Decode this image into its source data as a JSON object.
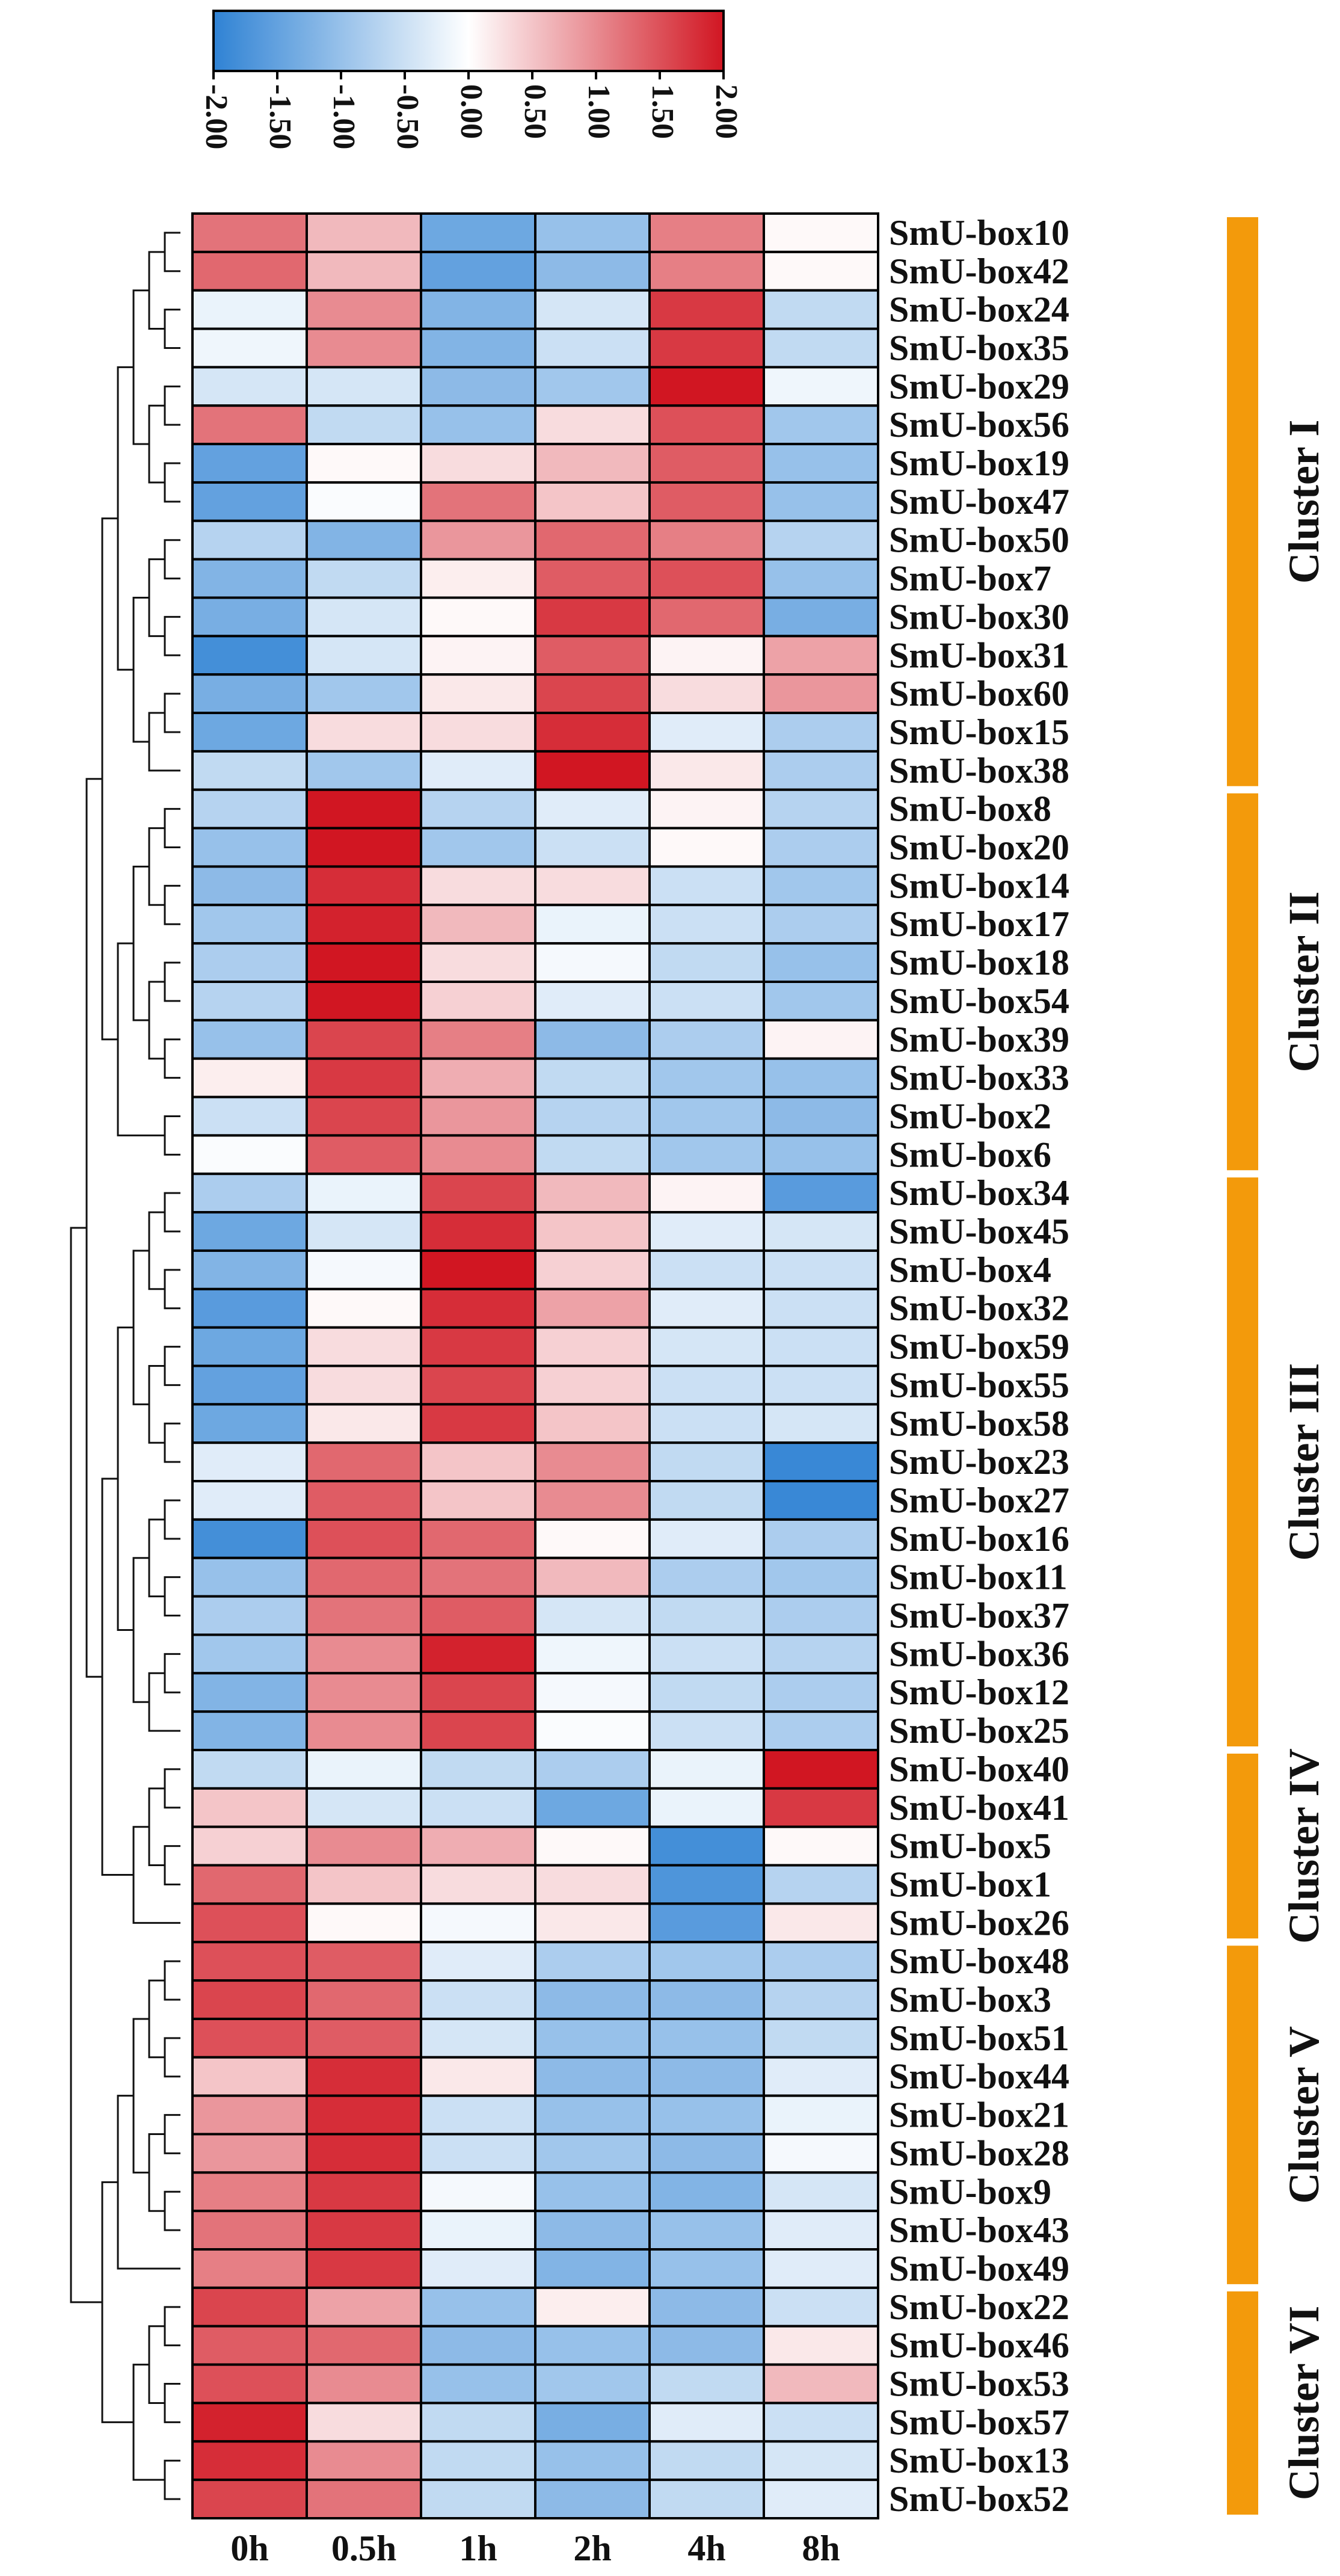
{
  "chart_data": {
    "type": "heatmap",
    "title": "",
    "colorbar": {
      "min": -2.0,
      "max": 2.0,
      "tick_labels": [
        "-2.00",
        "-1.50",
        "-1.00",
        "-0.50",
        "0.00",
        "0.50",
        "1.00",
        "1.50",
        "2.00"
      ],
      "tick_values": [
        -2.0,
        -1.5,
        -1.0,
        -0.5,
        0.0,
        0.5,
        1.0,
        1.5,
        2.0
      ],
      "low_color": "#2f82d4",
      "mid_color": "#ffffff",
      "high_color": "#d11622"
    },
    "columns": [
      "0h",
      "0.5h",
      "1h",
      "2h",
      "4h",
      "8h"
    ],
    "rows": [
      {
        "name": "SmU-box10",
        "values": [
          1.2,
          0.6,
          -1.4,
          -1.0,
          1.1,
          0.05
        ]
      },
      {
        "name": "SmU-box42",
        "values": [
          1.3,
          0.6,
          -1.5,
          -1.1,
          1.1,
          0.05
        ]
      },
      {
        "name": "SmU-box24",
        "values": [
          -0.2,
          1.0,
          -1.2,
          -0.4,
          1.7,
          -0.6
        ]
      },
      {
        "name": "SmU-box35",
        "values": [
          -0.15,
          1.0,
          -1.2,
          -0.5,
          1.7,
          -0.6
        ]
      },
      {
        "name": "SmU-box29",
        "values": [
          -0.4,
          -0.4,
          -1.1,
          -0.9,
          2.0,
          -0.15
        ]
      },
      {
        "name": "SmU-box56",
        "values": [
          1.2,
          -0.6,
          -1.0,
          0.3,
          1.5,
          -0.9
        ]
      },
      {
        "name": "SmU-box19",
        "values": [
          -1.5,
          0.05,
          0.3,
          0.6,
          1.4,
          -1.0
        ]
      },
      {
        "name": "SmU-box47",
        "values": [
          -1.5,
          -0.05,
          1.2,
          0.5,
          1.4,
          -1.0
        ]
      },
      {
        "name": "SmU-box50",
        "values": [
          -0.7,
          -1.2,
          0.9,
          1.3,
          1.1,
          -0.7
        ]
      },
      {
        "name": "SmU-box7",
        "values": [
          -1.2,
          -0.6,
          0.15,
          1.4,
          1.5,
          -1.0
        ]
      },
      {
        "name": "SmU-box30",
        "values": [
          -1.3,
          -0.4,
          0.05,
          1.7,
          1.3,
          -1.3
        ]
      },
      {
        "name": "SmU-box31",
        "values": [
          -1.8,
          -0.4,
          0.1,
          1.4,
          0.1,
          0.8
        ]
      },
      {
        "name": "SmU-box60",
        "values": [
          -1.3,
          -0.9,
          0.2,
          1.6,
          0.3,
          0.9
        ]
      },
      {
        "name": "SmU-box15",
        "values": [
          -1.4,
          0.3,
          0.3,
          1.8,
          -0.3,
          -0.8
        ]
      },
      {
        "name": "SmU-box38",
        "values": [
          -0.6,
          -0.9,
          -0.3,
          2.0,
          0.2,
          -0.8
        ]
      },
      {
        "name": "SmU-box8",
        "values": [
          -0.7,
          2.0,
          -0.7,
          -0.3,
          0.1,
          -0.7
        ]
      },
      {
        "name": "SmU-box20",
        "values": [
          -1.0,
          2.0,
          -0.9,
          -0.5,
          0.05,
          -0.8
        ]
      },
      {
        "name": "SmU-box14",
        "values": [
          -1.1,
          1.8,
          0.3,
          0.3,
          -0.5,
          -0.9
        ]
      },
      {
        "name": "SmU-box17",
        "values": [
          -0.9,
          1.9,
          0.6,
          -0.2,
          -0.5,
          -0.8
        ]
      },
      {
        "name": "SmU-box18",
        "values": [
          -0.8,
          2.0,
          0.3,
          -0.1,
          -0.6,
          -1.0
        ]
      },
      {
        "name": "SmU-box54",
        "values": [
          -0.7,
          2.0,
          0.4,
          -0.3,
          -0.5,
          -0.9
        ]
      },
      {
        "name": "SmU-box39",
        "values": [
          -1.0,
          1.6,
          1.1,
          -1.1,
          -0.8,
          0.1
        ]
      },
      {
        "name": "SmU-box33",
        "values": [
          0.15,
          1.7,
          0.7,
          -0.6,
          -0.9,
          -1.0
        ]
      },
      {
        "name": "SmU-box2",
        "values": [
          -0.5,
          1.6,
          0.9,
          -0.7,
          -0.9,
          -1.1
        ]
      },
      {
        "name": "SmU-box6",
        "values": [
          -0.05,
          1.4,
          1.0,
          -0.6,
          -0.9,
          -1.0
        ]
      },
      {
        "name": "SmU-box34",
        "values": [
          -0.8,
          -0.2,
          1.6,
          0.6,
          0.1,
          -1.6
        ]
      },
      {
        "name": "SmU-box45",
        "values": [
          -1.4,
          -0.4,
          1.8,
          0.5,
          -0.3,
          -0.4
        ]
      },
      {
        "name": "SmU-box4",
        "values": [
          -1.2,
          -0.1,
          2.0,
          0.4,
          -0.5,
          -0.5
        ]
      },
      {
        "name": "SmU-box32",
        "values": [
          -1.6,
          0.05,
          1.8,
          0.8,
          -0.3,
          -0.5
        ]
      },
      {
        "name": "SmU-box59",
        "values": [
          -1.4,
          0.3,
          1.7,
          0.4,
          -0.4,
          -0.5
        ]
      },
      {
        "name": "SmU-box55",
        "values": [
          -1.5,
          0.3,
          1.6,
          0.4,
          -0.5,
          -0.5
        ]
      },
      {
        "name": "SmU-box58",
        "values": [
          -1.4,
          0.2,
          1.7,
          0.5,
          -0.5,
          -0.4
        ]
      },
      {
        "name": "SmU-box23",
        "values": [
          -0.3,
          1.3,
          0.5,
          1.0,
          -0.6,
          -1.9
        ]
      },
      {
        "name": "SmU-box27",
        "values": [
          -0.3,
          1.4,
          0.5,
          1.0,
          -0.6,
          -1.9
        ]
      },
      {
        "name": "SmU-box16",
        "values": [
          -1.8,
          1.5,
          1.3,
          0.05,
          -0.3,
          -0.8
        ]
      },
      {
        "name": "SmU-box11",
        "values": [
          -1.0,
          1.3,
          1.2,
          0.6,
          -0.8,
          -0.9
        ]
      },
      {
        "name": "SmU-box37",
        "values": [
          -0.8,
          1.2,
          1.4,
          -0.4,
          -0.6,
          -0.8
        ]
      },
      {
        "name": "SmU-box36",
        "values": [
          -0.9,
          1.0,
          1.9,
          -0.15,
          -0.5,
          -0.7
        ]
      },
      {
        "name": "SmU-box12",
        "values": [
          -1.2,
          1.0,
          1.6,
          -0.1,
          -0.6,
          -0.8
        ]
      },
      {
        "name": "SmU-box25",
        "values": [
          -1.2,
          1.0,
          1.6,
          -0.05,
          -0.5,
          -0.8
        ]
      },
      {
        "name": "SmU-box40",
        "values": [
          -0.6,
          -0.2,
          -0.6,
          -0.8,
          -0.2,
          2.0
        ]
      },
      {
        "name": "SmU-box41",
        "values": [
          0.5,
          -0.4,
          -0.5,
          -1.4,
          -0.2,
          1.7
        ]
      },
      {
        "name": "SmU-box5",
        "values": [
          0.4,
          1.0,
          0.7,
          0.05,
          -1.8,
          0.05
        ]
      },
      {
        "name": "SmU-box1",
        "values": [
          1.3,
          0.5,
          0.3,
          0.3,
          -1.7,
          -0.7
        ]
      },
      {
        "name": "SmU-box26",
        "values": [
          1.5,
          0.05,
          -0.1,
          0.2,
          -1.6,
          0.2
        ]
      },
      {
        "name": "SmU-box48",
        "values": [
          1.5,
          1.4,
          -0.3,
          -0.8,
          -0.9,
          -0.8
        ]
      },
      {
        "name": "SmU-box3",
        "values": [
          1.6,
          1.3,
          -0.5,
          -1.1,
          -1.1,
          -0.7
        ]
      },
      {
        "name": "SmU-box51",
        "values": [
          1.5,
          1.4,
          -0.4,
          -1.0,
          -1.0,
          -0.6
        ]
      },
      {
        "name": "SmU-box44",
        "values": [
          0.5,
          1.8,
          0.2,
          -1.1,
          -1.1,
          -0.3
        ]
      },
      {
        "name": "SmU-box21",
        "values": [
          0.9,
          1.8,
          -0.5,
          -1.0,
          -1.0,
          -0.2
        ]
      },
      {
        "name": "SmU-box28",
        "values": [
          0.9,
          1.8,
          -0.5,
          -0.9,
          -1.1,
          -0.1
        ]
      },
      {
        "name": "SmU-box9",
        "values": [
          1.1,
          1.7,
          -0.1,
          -1.0,
          -1.2,
          -0.4
        ]
      },
      {
        "name": "SmU-box43",
        "values": [
          1.2,
          1.7,
          -0.2,
          -1.1,
          -1.0,
          -0.3
        ]
      },
      {
        "name": "SmU-box49",
        "values": [
          1.1,
          1.7,
          -0.3,
          -1.2,
          -1.0,
          -0.3
        ]
      },
      {
        "name": "SmU-box22",
        "values": [
          1.6,
          0.8,
          -1.0,
          0.15,
          -1.1,
          -0.5
        ]
      },
      {
        "name": "SmU-box46",
        "values": [
          1.4,
          1.3,
          -1.1,
          -1.0,
          -1.1,
          0.2
        ]
      },
      {
        "name": "SmU-box53",
        "values": [
          1.5,
          1.0,
          -1.0,
          -0.9,
          -0.6,
          0.6
        ]
      },
      {
        "name": "SmU-box57",
        "values": [
          1.9,
          0.3,
          -0.6,
          -1.3,
          -0.3,
          -0.5
        ]
      },
      {
        "name": "SmU-box13",
        "values": [
          1.8,
          1.0,
          -0.6,
          -1.0,
          -0.6,
          -0.4
        ]
      },
      {
        "name": "SmU-box52",
        "values": [
          1.6,
          1.2,
          -0.6,
          -1.1,
          -0.6,
          -0.3
        ]
      }
    ],
    "clusters": [
      {
        "label": "Cluster I",
        "first_row": "SmU-box10",
        "last_row": "SmU-box38"
      },
      {
        "label": "Cluster II",
        "first_row": "SmU-box8",
        "last_row": "SmU-box6"
      },
      {
        "label": "Cluster III",
        "first_row": "SmU-box34",
        "last_row": "SmU-box25"
      },
      {
        "label": "Cluster IV",
        "first_row": "SmU-box40",
        "last_row": "SmU-box26"
      },
      {
        "label": "Cluster V",
        "first_row": "SmU-box48",
        "last_row": "SmU-box49"
      },
      {
        "label": "Cluster VI",
        "first_row": "SmU-box22",
        "last_row": "SmU-box52"
      }
    ],
    "cluster_bar_color": "#f39a0b",
    "dendrogram_color": "#111111"
  }
}
